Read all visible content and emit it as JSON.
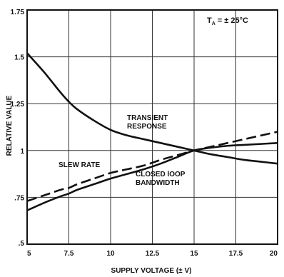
{
  "chart_data": {
    "type": "line",
    "condition_note": "= ± 25°C",
    "condition_symbol": "T",
    "condition_subscript": "A",
    "xlabel": "SUPPLY VOLTAGE (± V)",
    "ylabel": "RELATIVE VALUE",
    "xlim": [
      5,
      20
    ],
    "ylim": [
      0.5,
      1.75
    ],
    "x_ticks": [
      "5",
      "7.5",
      "10",
      "12.5",
      "15",
      "17.5",
      "20"
    ],
    "y_ticks": [
      ".5",
      ".75",
      "1",
      "1.25",
      "1.5",
      "1.75"
    ],
    "grid": true,
    "series": [
      {
        "name": "TRANSIENT RESPONSE",
        "name_lines": [
          "TRANSIENT",
          "RESPONSE"
        ],
        "style": "solid",
        "x": [
          5,
          6,
          7,
          7.5,
          8,
          9,
          10,
          11,
          12,
          13,
          14,
          15,
          16,
          17,
          18,
          19,
          20
        ],
        "y": [
          1.52,
          1.42,
          1.31,
          1.26,
          1.22,
          1.16,
          1.11,
          1.08,
          1.06,
          1.04,
          1.02,
          1.0,
          0.98,
          0.965,
          0.95,
          0.94,
          0.93
        ]
      },
      {
        "name": "SLEW RATE",
        "name_lines": [
          "SLEW RATE"
        ],
        "style": "dashed",
        "x": [
          5,
          6,
          7,
          7.5,
          8,
          9,
          10,
          11,
          12,
          13,
          14,
          15,
          16,
          17,
          18,
          19,
          20
        ],
        "y": [
          0.73,
          0.76,
          0.79,
          0.8,
          0.82,
          0.85,
          0.88,
          0.9,
          0.92,
          0.95,
          0.975,
          1.0,
          1.02,
          1.04,
          1.06,
          1.08,
          1.1
        ]
      },
      {
        "name": "CLOSED lOOP BANDWIDTH",
        "name_lines": [
          "CLOSED lOOP",
          "BANDWIDTH"
        ],
        "style": "solid",
        "x": [
          5,
          6,
          7,
          7.5,
          8,
          9,
          10,
          11,
          12,
          13,
          14,
          15,
          16,
          17,
          18,
          19,
          20
        ],
        "y": [
          0.68,
          0.72,
          0.755,
          0.77,
          0.79,
          0.82,
          0.85,
          0.875,
          0.9,
          0.93,
          0.965,
          1.0,
          1.015,
          1.025,
          1.03,
          1.035,
          1.04
        ]
      }
    ]
  }
}
